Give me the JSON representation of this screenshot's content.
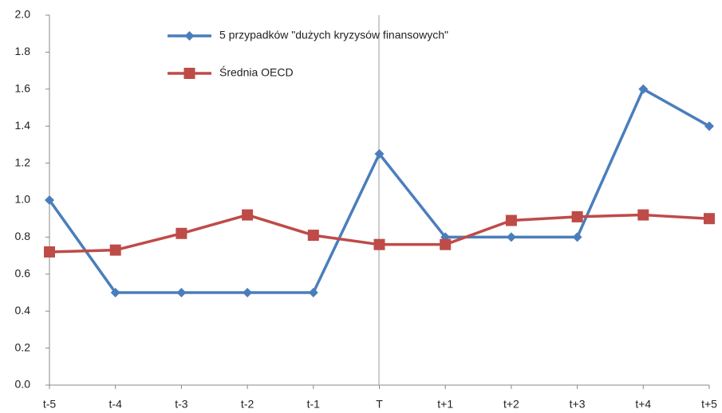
{
  "chart_data": {
    "type": "line",
    "categories": [
      "t-5",
      "t-4",
      "t-3",
      "t-2",
      "t-1",
      "T",
      "t+1",
      "t+2",
      "t+3",
      "t+4",
      "t+5"
    ],
    "series": [
      {
        "name": "5 przypadków \"dużych kryzysów finansowych\"",
        "color": "#4a7ebb",
        "marker": "diamond",
        "values": [
          1.0,
          0.5,
          0.5,
          0.5,
          0.5,
          1.25,
          0.8,
          0.8,
          0.8,
          1.6,
          1.4
        ]
      },
      {
        "name": "Średnia OECD",
        "color": "#be4b48",
        "marker": "square",
        "values": [
          0.72,
          0.73,
          0.82,
          0.92,
          0.81,
          0.76,
          0.76,
          0.89,
          0.91,
          0.92,
          0.9
        ]
      }
    ],
    "ylim": [
      0,
      2
    ],
    "yticks": [
      {
        "value": 0,
        "label": "0.0"
      },
      0.2,
      0.4,
      0.6,
      0.8,
      {
        "value": 1,
        "label": "1.0"
      },
      1.2,
      1.4,
      1.6,
      1.8,
      {
        "value": 2,
        "label": "2.0"
      }
    ]
  }
}
